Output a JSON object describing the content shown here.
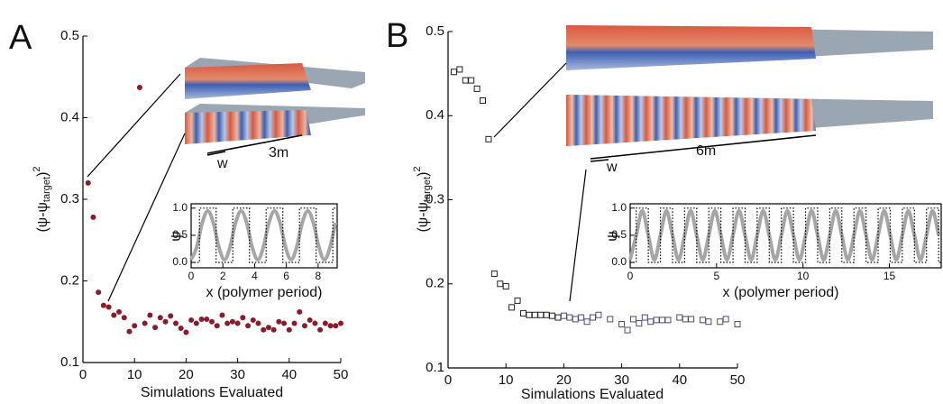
{
  "chart_data": [
    {
      "type": "scatter",
      "panel_label": "A",
      "xlabel": "Simulations Evaluated",
      "ylabel": "(ψ-ψ",
      "ylabel_sub": "target",
      "ylabel_close": ")",
      "ylabel_sup": "2",
      "annotations": [
        "w",
        "3m"
      ],
      "marker": "circle",
      "xlim": [
        0,
        50
      ],
      "ylim": [
        0.1,
        0.5
      ],
      "xticks": [
        0,
        10,
        20,
        30,
        40,
        50
      ],
      "yticks": [
        0.1,
        0.2,
        0.3,
        0.4,
        0.5
      ],
      "series": [
        {
          "color": "#8b1a2b",
          "x": [
            1,
            2,
            3,
            4,
            5,
            6,
            7,
            8,
            9,
            10,
            11,
            12,
            13,
            14,
            15,
            16,
            17,
            18,
            19,
            20,
            21,
            22,
            23,
            24,
            25,
            26,
            27,
            28,
            29,
            30,
            31,
            32,
            33,
            34,
            35,
            36,
            37,
            38,
            39,
            40,
            41,
            42,
            43,
            44,
            45,
            46,
            47,
            48,
            49,
            50
          ],
          "values": [
            0.32,
            0.278,
            0.186,
            0.17,
            0.168,
            0.158,
            0.162,
            0.155,
            0.138,
            0.145,
            0.437,
            0.148,
            0.158,
            0.143,
            0.155,
            0.15,
            0.157,
            0.148,
            0.142,
            0.137,
            0.152,
            0.148,
            0.153,
            0.153,
            0.15,
            0.145,
            0.158,
            0.148,
            0.15,
            0.148,
            0.155,
            0.145,
            0.152,
            0.148,
            0.14,
            0.143,
            0.14,
            0.15,
            0.148,
            0.14,
            0.148,
            0.162,
            0.145,
            0.152,
            0.148,
            0.14,
            0.148,
            0.145,
            0.145,
            0.148
          ]
        }
      ]
    },
    {
      "type": "line",
      "xlabel": "x (polymer period)",
      "ylabel": "ψ",
      "xlim": [
        0,
        9.2
      ],
      "ylim": [
        -0.1,
        1.08
      ],
      "xticks": [
        0,
        2,
        4,
        6,
        8
      ],
      "yticks": [
        {
          "value": 0,
          "label": "0.0"
        },
        {
          "value": 0.5,
          "label": "0.5"
        },
        {
          "value": 1,
          "label": "1.0"
        }
      ],
      "series": [
        {
          "color": "#a6a6a6",
          "x": [
            0,
            0.35,
            0.7,
            1.05,
            1.4,
            1.75,
            2.1,
            2.45,
            2.8,
            3.15,
            3.5,
            3.85,
            4.2,
            4.55,
            4.9,
            5.25,
            5.6,
            5.95,
            6.3,
            6.65,
            7,
            7.35,
            7.7,
            8.05,
            8.4,
            8.75,
            9.1
          ],
          "values": [
            0.05,
            0.28,
            0.73,
            0.95,
            0.73,
            0.28,
            0.05,
            0.28,
            0.73,
            0.95,
            0.73,
            0.28,
            0.05,
            0.28,
            0.73,
            0.95,
            0.73,
            0.28,
            0.05,
            0.28,
            0.73,
            0.95,
            0.73,
            0.28,
            0.05,
            0.28,
            0.73
          ]
        },
        {
          "color": "#000000",
          "drawstyle": "steps-post",
          "linestyle": "dotted",
          "x": [
            0,
            0.525,
            1.575,
            2.625,
            3.675,
            4.725,
            5.775,
            6.825,
            7.875,
            8.925
          ],
          "values": [
            0,
            1,
            0,
            1,
            0,
            1,
            0,
            1,
            0,
            1
          ]
        }
      ]
    },
    {
      "type": "scatter",
      "panel_label": "B",
      "xlabel": "Simulations Evaluated",
      "ylabel": "(ψ-ψ",
      "ylabel_sub": "target",
      "ylabel_close": ")",
      "ylabel_sup": "2",
      "annotations": [
        "w",
        "6m"
      ],
      "marker": "square",
      "xlim": [
        0,
        50
      ],
      "ylim": [
        0.1,
        0.5
      ],
      "xticks": [
        0,
        10,
        20,
        30,
        40,
        50
      ],
      "yticks": [
        0.1,
        0.2,
        0.3,
        0.4,
        0.5
      ],
      "series": [
        {
          "color": "#222222",
          "x": [
            1,
            2,
            3,
            4,
            5,
            6,
            7,
            8,
            9,
            10,
            11,
            12,
            13,
            14,
            15,
            16,
            17,
            18,
            19
          ],
          "values": [
            0.452,
            0.455,
            0.442,
            0.442,
            0.432,
            0.418,
            0.372,
            0.212,
            0.2,
            0.197,
            0.172,
            0.18,
            0.165,
            0.163,
            0.163,
            0.163,
            0.163,
            0.162,
            0.16
          ]
        },
        {
          "color": "#4a4a80",
          "x": [
            20,
            21,
            22,
            23,
            24,
            25,
            26,
            28,
            30,
            31,
            32,
            33,
            34,
            35,
            36,
            37,
            38,
            40,
            41,
            42,
            44,
            45,
            47,
            48,
            50
          ],
          "values": [
            0.162,
            0.16,
            0.158,
            0.16,
            0.155,
            0.16,
            0.163,
            0.158,
            0.152,
            0.145,
            0.158,
            0.153,
            0.16,
            0.155,
            0.157,
            0.157,
            0.157,
            0.16,
            0.158,
            0.158,
            0.157,
            0.155,
            0.155,
            0.158,
            0.152
          ]
        }
      ]
    },
    {
      "type": "line",
      "xlabel": "x (polymer period)",
      "ylabel": "ψ",
      "xlim": [
        0,
        18
      ],
      "ylim": [
        -0.1,
        1.08
      ],
      "xticks": [
        0,
        5,
        10,
        15
      ],
      "yticks": [
        {
          "value": 0,
          "label": "0.0"
        },
        {
          "value": 0.5,
          "label": "0.5"
        },
        {
          "value": 1,
          "label": "1.0"
        }
      ],
      "series": [
        {
          "color": "#a6a6a6",
          "x": [
            0,
            0.35,
            0.7,
            1.05,
            1.4,
            1.75,
            2.1,
            2.45,
            2.8,
            3.15,
            3.5,
            3.85,
            4.2,
            4.55,
            4.9,
            5.25,
            5.6,
            5.95,
            6.3,
            6.65,
            7,
            7.35,
            7.7,
            8.05,
            8.4,
            8.75,
            9.1,
            9.45,
            9.8,
            10.15,
            10.5,
            10.85,
            11.2,
            11.55,
            11.9,
            12.25,
            12.6,
            12.95,
            13.3,
            13.65,
            14,
            14.35,
            14.7,
            15.05,
            15.4,
            15.75,
            16.1,
            16.45,
            16.8,
            17.15,
            17.5,
            17.85
          ],
          "values": [
            0.05,
            0.5,
            0.95,
            0.5,
            0.05,
            0.5,
            0.95,
            0.5,
            0.05,
            0.5,
            0.95,
            0.5,
            0.05,
            0.5,
            0.95,
            0.5,
            0.05,
            0.5,
            0.95,
            0.5,
            0.05,
            0.5,
            0.95,
            0.5,
            0.05,
            0.5,
            0.95,
            0.5,
            0.05,
            0.5,
            0.95,
            0.5,
            0.05,
            0.5,
            0.95,
            0.5,
            0.05,
            0.5,
            0.95,
            0.5,
            0.05,
            0.5,
            0.95,
            0.5,
            0.05,
            0.5,
            0.95,
            0.5,
            0.05,
            0.5,
            0.95,
            0.5
          ]
        },
        {
          "color": "#000000",
          "drawstyle": "steps-post",
          "linestyle": "dotted",
          "x": [
            0,
            0.35,
            1.05,
            1.75,
            2.45,
            3.15,
            3.85,
            4.55,
            5.25,
            5.95,
            6.65,
            7.35,
            8.05,
            8.75,
            9.45,
            10.15,
            10.85,
            11.55,
            12.25,
            12.95,
            13.65,
            14.35,
            15.05,
            15.75,
            16.45,
            17.15,
            17.85
          ],
          "values": [
            0,
            1,
            0,
            1,
            0,
            1,
            0,
            1,
            0,
            1,
            0,
            1,
            0,
            1,
            0,
            1,
            0,
            1,
            0,
            1,
            0,
            1,
            0,
            1,
            0,
            1,
            0
          ]
        }
      ]
    }
  ]
}
